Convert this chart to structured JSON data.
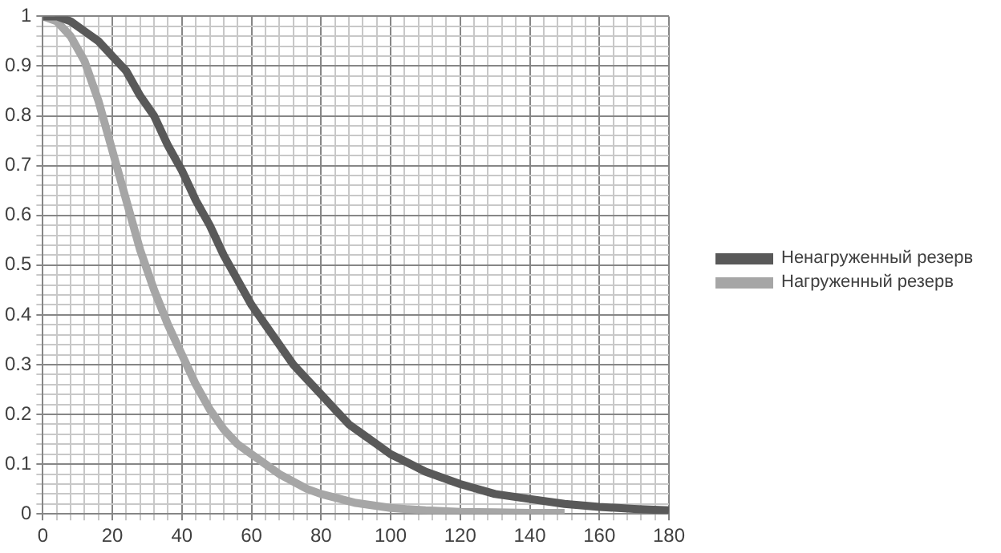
{
  "chart_data": {
    "type": "line",
    "legend": "right",
    "grid": true,
    "marker": "none",
    "line_style": "solid",
    "xlim": [
      0,
      180
    ],
    "xticks": [
      0,
      {
        "value": 4,
        "label": null
      },
      {
        "value": 8,
        "label": null
      },
      {
        "value": 12,
        "label": null
      },
      {
        "value": 16,
        "label": null
      },
      20,
      {
        "value": 24,
        "label": null
      },
      {
        "value": 28,
        "label": null
      },
      {
        "value": 32,
        "label": null
      },
      {
        "value": 36,
        "label": null
      },
      40,
      {
        "value": 44,
        "label": null
      },
      {
        "value": 48,
        "label": null
      },
      {
        "value": 52,
        "label": null
      },
      {
        "value": 56,
        "label": null
      },
      60,
      {
        "value": 64,
        "label": null
      },
      {
        "value": 68,
        "label": null
      },
      {
        "value": 72,
        "label": null
      },
      {
        "value": 76,
        "label": null
      },
      80,
      {
        "value": 84,
        "label": null
      },
      {
        "value": 88,
        "label": null
      },
      {
        "value": 92,
        "label": null
      },
      {
        "value": 96,
        "label": null
      },
      100,
      {
        "value": 104,
        "label": null
      },
      {
        "value": 108,
        "label": null
      },
      {
        "value": 112,
        "label": null
      },
      {
        "value": 116,
        "label": null
      },
      120,
      {
        "value": 124,
        "label": null
      },
      {
        "value": 128,
        "label": null
      },
      {
        "value": 132,
        "label": null
      },
      {
        "value": 136,
        "label": null
      },
      140,
      {
        "value": 144,
        "label": null
      },
      {
        "value": 148,
        "label": null
      },
      {
        "value": 152,
        "label": null
      },
      {
        "value": 156,
        "label": null
      },
      160,
      {
        "value": 164,
        "label": null
      },
      {
        "value": 168,
        "label": null
      },
      {
        "value": 172,
        "label": null
      },
      {
        "value": 176,
        "label": null
      },
      180
    ],
    "ylim": [
      0,
      1
    ],
    "yticks": [
      0,
      {
        "value": 0.02,
        "label": null
      },
      {
        "value": 0.04,
        "label": null
      },
      {
        "value": 0.06,
        "label": null
      },
      {
        "value": 0.08,
        "label": null
      },
      0.1,
      {
        "value": 0.12,
        "label": null
      },
      {
        "value": 0.14,
        "label": null
      },
      {
        "value": 0.16,
        "label": null
      },
      {
        "value": 0.18,
        "label": null
      },
      0.2,
      {
        "value": 0.22,
        "label": null
      },
      {
        "value": 0.24,
        "label": null
      },
      {
        "value": 0.26,
        "label": null
      },
      {
        "value": 0.28,
        "label": null
      },
      0.3,
      {
        "value": 0.32,
        "label": null
      },
      {
        "value": 0.34,
        "label": null
      },
      {
        "value": 0.36,
        "label": null
      },
      {
        "value": 0.38,
        "label": null
      },
      0.4,
      {
        "value": 0.42,
        "label": null
      },
      {
        "value": 0.44,
        "label": null
      },
      {
        "value": 0.46,
        "label": null
      },
      {
        "value": 0.48,
        "label": null
      },
      0.5,
      {
        "value": 0.52,
        "label": null
      },
      {
        "value": 0.54,
        "label": null
      },
      {
        "value": 0.56,
        "label": null
      },
      {
        "value": 0.58,
        "label": null
      },
      0.6,
      {
        "value": 0.62,
        "label": null
      },
      {
        "value": 0.64,
        "label": null
      },
      {
        "value": 0.66,
        "label": null
      },
      {
        "value": 0.68,
        "label": null
      },
      0.7,
      {
        "value": 0.72,
        "label": null
      },
      {
        "value": 0.74,
        "label": null
      },
      {
        "value": 0.76,
        "label": null
      },
      {
        "value": 0.78,
        "label": null
      },
      0.8,
      {
        "value": 0.82,
        "label": null
      },
      {
        "value": 0.84,
        "label": null
      },
      {
        "value": 0.86,
        "label": null
      },
      {
        "value": 0.88,
        "label": null
      },
      0.9,
      {
        "value": 0.92,
        "label": null
      },
      {
        "value": 0.94,
        "label": null
      },
      {
        "value": 0.96,
        "label": null
      },
      {
        "value": 0.98,
        "label": null
      },
      1
    ],
    "series": [
      {
        "name": "Ненагруженный резерв",
        "color": "#595959",
        "x": [
          0,
          4,
          8,
          12,
          16,
          20,
          24,
          28,
          32,
          36,
          40,
          44,
          48,
          52,
          56,
          60,
          64,
          68,
          72,
          76,
          80,
          84,
          88,
          92,
          96,
          100,
          110,
          120,
          130,
          140,
          150,
          160,
          170,
          180
        ],
        "values": [
          1,
          1,
          0.99,
          0.97,
          0.95,
          0.92,
          0.89,
          0.84,
          0.8,
          0.74,
          0.69,
          0.63,
          0.58,
          0.52,
          0.47,
          0.42,
          0.38,
          0.34,
          0.3,
          0.27,
          0.24,
          0.21,
          0.18,
          0.16,
          0.14,
          0.12,
          0.085,
          0.06,
          0.04,
          0.03,
          0.02,
          0.014,
          0.01,
          0.007
        ]
      },
      {
        "name": "Нагруженный резерв",
        "color": "#a6a6a6",
        "x": [
          0,
          4,
          8,
          12,
          16,
          20,
          24,
          28,
          32,
          36,
          40,
          44,
          48,
          52,
          56,
          60,
          64,
          68,
          72,
          76,
          80,
          90,
          100,
          110,
          120,
          130,
          140,
          150
        ],
        "values": [
          1,
          0.99,
          0.96,
          0.91,
          0.83,
          0.73,
          0.63,
          0.53,
          0.45,
          0.38,
          0.32,
          0.26,
          0.21,
          0.17,
          0.14,
          0.12,
          0.1,
          0.08,
          0.065,
          0.05,
          0.04,
          0.022,
          0.012,
          0.007,
          0.004,
          0.003,
          0.002,
          0.002
        ]
      }
    ]
  }
}
